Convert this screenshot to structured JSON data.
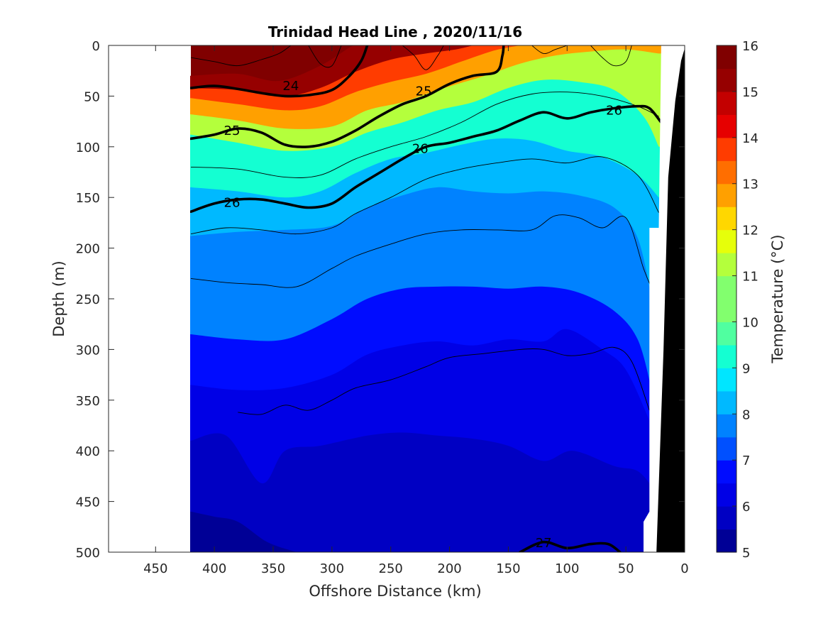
{
  "chart_data": {
    "type": "heatmap",
    "subtype": "filled-contour-section",
    "title": "Trinidad Head Line , 2020/11/16",
    "xlabel": "Offshore Distance (km)",
    "ylabel": "Depth (m)",
    "colorbar_label": "Temperature (°C)",
    "xlim": [
      490,
      0
    ],
    "ylim": [
      0,
      500
    ],
    "x_reversed": true,
    "y_reversed": true,
    "x_ticks": [
      "450",
      "400",
      "350",
      "300",
      "250",
      "200",
      "150",
      "100",
      "50",
      "0"
    ],
    "y_ticks": [
      "0",
      "50",
      "100",
      "150",
      "200",
      "250",
      "300",
      "350",
      "400",
      "450",
      "500"
    ],
    "colorbar_ticks": [
      "16",
      "15",
      "14",
      "13",
      "12",
      "11",
      "10",
      "9",
      "8",
      "7",
      "6",
      "5"
    ],
    "clim": [
      5,
      16
    ],
    "colormap": "jet",
    "contour_level_step": 0.5,
    "data_extent_km": [
      420,
      22
    ],
    "colorbar_colors": [
      "#000096",
      "#0000c3",
      "#0000e6",
      "#000cff",
      "#0050ff",
      "#0082ff",
      "#00b9ff",
      "#00e6ff",
      "#14ffd2",
      "#50ffa0",
      "#82ff6e",
      "#b4ff3c",
      "#e6ff0a",
      "#ffd700",
      "#ffa000",
      "#ff6e00",
      "#ff3c00",
      "#e60000",
      "#c30000",
      "#960000",
      "#800000"
    ],
    "isotherm_depths_m": [
      {
        "temp": 15.5,
        "points": [
          [
            420,
            30
          ],
          [
            380,
            28
          ],
          [
            345,
            35
          ],
          [
            310,
            20
          ],
          [
            285,
            2
          ],
          [
            280,
            0
          ]
        ]
      },
      {
        "temp": 14,
        "points": [
          [
            420,
            42
          ],
          [
            380,
            44
          ],
          [
            340,
            50
          ],
          [
            310,
            42
          ],
          [
            280,
            26
          ],
          [
            250,
            14
          ],
          [
            220,
            8
          ],
          [
            195,
            4
          ],
          [
            180,
            0
          ]
        ]
      },
      {
        "temp": 12.5,
        "points": [
          [
            420,
            52
          ],
          [
            380,
            58
          ],
          [
            340,
            64
          ],
          [
            310,
            60
          ],
          [
            280,
            46
          ],
          [
            250,
            36
          ],
          [
            220,
            28
          ],
          [
            190,
            16
          ],
          [
            165,
            6
          ],
          [
            150,
            2
          ],
          [
            140,
            0
          ]
        ]
      },
      {
        "temp": 11,
        "points": [
          [
            420,
            68
          ],
          [
            380,
            74
          ],
          [
            340,
            82
          ],
          [
            300,
            80
          ],
          [
            270,
            64
          ],
          [
            240,
            56
          ],
          [
            210,
            44
          ],
          [
            170,
            30
          ],
          [
            140,
            18
          ],
          [
            110,
            10
          ],
          [
            80,
            6
          ],
          [
            50,
            4
          ],
          [
            22,
            8
          ]
        ]
      },
      {
        "temp": 9.5,
        "points": [
          [
            420,
            88
          ],
          [
            380,
            96
          ],
          [
            340,
            104
          ],
          [
            300,
            100
          ],
          [
            270,
            86
          ],
          [
            240,
            76
          ],
          [
            210,
            64
          ],
          [
            180,
            56
          ],
          [
            150,
            42
          ],
          [
            120,
            34
          ],
          [
            90,
            36
          ],
          [
            60,
            44
          ],
          [
            35,
            70
          ],
          [
            22,
            100
          ]
        ]
      },
      {
        "temp": 8.5,
        "points": [
          [
            420,
            140
          ],
          [
            380,
            144
          ],
          [
            340,
            150
          ],
          [
            310,
            144
          ],
          [
            280,
            126
          ],
          [
            250,
            112
          ],
          [
            220,
            106
          ],
          [
            190,
            98
          ],
          [
            160,
            92
          ],
          [
            130,
            94
          ],
          [
            100,
            104
          ],
          [
            70,
            110
          ],
          [
            40,
            128
          ],
          [
            22,
            150
          ]
        ]
      },
      {
        "temp": 7.5,
        "points": [
          [
            420,
            188
          ],
          [
            380,
            184
          ],
          [
            340,
            182
          ],
          [
            300,
            178
          ],
          [
            270,
            160
          ],
          [
            240,
            148
          ],
          [
            210,
            140
          ],
          [
            180,
            144
          ],
          [
            150,
            146
          ],
          [
            120,
            144
          ],
          [
            90,
            148
          ],
          [
            60,
            160
          ],
          [
            40,
            190
          ],
          [
            28,
            250
          ]
        ]
      },
      {
        "temp": 6.5,
        "points": [
          [
            420,
            285
          ],
          [
            380,
            290
          ],
          [
            340,
            290
          ],
          [
            300,
            270
          ],
          [
            270,
            250
          ],
          [
            240,
            240
          ],
          [
            210,
            238
          ],
          [
            180,
            238
          ],
          [
            150,
            240
          ],
          [
            120,
            238
          ],
          [
            90,
            244
          ],
          [
            60,
            262
          ],
          [
            40,
            290
          ],
          [
            28,
            340
          ]
        ]
      },
      {
        "temp": 6,
        "points": [
          [
            420,
            335
          ],
          [
            380,
            340
          ],
          [
            340,
            338
          ],
          [
            300,
            325
          ],
          [
            270,
            305
          ],
          [
            240,
            296
          ],
          [
            210,
            292
          ],
          [
            180,
            296
          ],
          [
            150,
            290
          ],
          [
            120,
            292
          ],
          [
            100,
            280
          ],
          [
            70,
            300
          ],
          [
            50,
            320
          ],
          [
            30,
            370
          ]
        ]
      },
      {
        "temp": 5.5,
        "points": [
          [
            420,
            390
          ],
          [
            390,
            385
          ],
          [
            360,
            432
          ],
          [
            340,
            400
          ],
          [
            310,
            395
          ],
          [
            270,
            385
          ],
          [
            240,
            382
          ],
          [
            210,
            385
          ],
          [
            180,
            388
          ],
          [
            150,
            395
          ],
          [
            120,
            410
          ],
          [
            95,
            400
          ],
          [
            60,
            415
          ],
          [
            40,
            420
          ],
          [
            26,
            438
          ]
        ]
      },
      {
        "temp": 5.2,
        "points": [
          [
            420,
            460
          ],
          [
            400,
            465
          ],
          [
            380,
            470
          ],
          [
            355,
            490
          ],
          [
            330,
            500
          ]
        ]
      }
    ],
    "sigma_contours": [
      {
        "label": "24",
        "points": [
          [
            420,
            42
          ],
          [
            400,
            40
          ],
          [
            380,
            43
          ],
          [
            360,
            47
          ],
          [
            340,
            50
          ],
          [
            320,
            49
          ],
          [
            300,
            44
          ],
          [
            285,
            30
          ],
          [
            275,
            15
          ],
          [
            270,
            0
          ]
        ]
      },
      {
        "label": "25",
        "points": [
          [
            420,
            92
          ],
          [
            400,
            88
          ],
          [
            380,
            82
          ],
          [
            360,
            86
          ],
          [
            340,
            98
          ],
          [
            320,
            100
          ],
          [
            300,
            95
          ],
          [
            280,
            84
          ],
          [
            260,
            70
          ],
          [
            240,
            58
          ],
          [
            220,
            50
          ],
          [
            200,
            38
          ],
          [
            180,
            30
          ],
          [
            160,
            26
          ],
          [
            155,
            10
          ],
          [
            154,
            0
          ]
        ]
      },
      {
        "label": "26",
        "points": [
          [
            420,
            164
          ],
          [
            400,
            156
          ],
          [
            380,
            152
          ],
          [
            360,
            152
          ],
          [
            340,
            156
          ],
          [
            320,
            160
          ],
          [
            300,
            156
          ],
          [
            280,
            140
          ],
          [
            260,
            126
          ],
          [
            240,
            112
          ],
          [
            220,
            100
          ],
          [
            200,
            96
          ],
          [
            180,
            90
          ],
          [
            160,
            84
          ],
          [
            140,
            74
          ],
          [
            120,
            66
          ],
          [
            100,
            72
          ],
          [
            80,
            66
          ],
          [
            60,
            62
          ],
          [
            40,
            60
          ],
          [
            30,
            62
          ],
          [
            20,
            76
          ]
        ]
      },
      {
        "label": "27",
        "points": [
          [
            140,
            500
          ],
          [
            120,
            490
          ],
          [
            100,
            496
          ],
          [
            80,
            492
          ],
          [
            65,
            492
          ],
          [
            55,
            500
          ]
        ]
      }
    ],
    "thin_contours": [
      [
        [
          420,
          120
        ],
        [
          380,
          122
        ],
        [
          340,
          130
        ],
        [
          310,
          128
        ],
        [
          280,
          112
        ],
        [
          250,
          100
        ],
        [
          220,
          90
        ],
        [
          190,
          76
        ],
        [
          160,
          58
        ],
        [
          130,
          48
        ],
        [
          100,
          46
        ],
        [
          70,
          50
        ],
        [
          40,
          60
        ],
        [
          22,
          70
        ]
      ],
      [
        [
          420,
          186
        ],
        [
          390,
          180
        ],
        [
          360,
          182
        ],
        [
          330,
          186
        ],
        [
          300,
          180
        ],
        [
          280,
          166
        ],
        [
          250,
          150
        ],
        [
          220,
          132
        ],
        [
          190,
          122
        ],
        [
          160,
          116
        ],
        [
          130,
          112
        ],
        [
          100,
          116
        ],
        [
          70,
          110
        ],
        [
          40,
          128
        ],
        [
          22,
          165
        ]
      ],
      [
        [
          420,
          230
        ],
        [
          390,
          234
        ],
        [
          360,
          236
        ],
        [
          330,
          238
        ],
        [
          300,
          220
        ],
        [
          280,
          208
        ],
        [
          250,
          196
        ],
        [
          220,
          186
        ],
        [
          190,
          182
        ],
        [
          160,
          182
        ],
        [
          130,
          182
        ],
        [
          110,
          168
        ],
        [
          90,
          170
        ],
        [
          70,
          180
        ],
        [
          50,
          170
        ],
        [
          35,
          220
        ],
        [
          28,
          240
        ]
      ],
      [
        [
          380,
          362
        ],
        [
          360,
          364
        ],
        [
          340,
          355
        ],
        [
          320,
          360
        ],
        [
          300,
          350
        ],
        [
          280,
          338
        ],
        [
          250,
          330
        ],
        [
          220,
          317
        ],
        [
          200,
          308
        ],
        [
          170,
          304
        ],
        [
          140,
          300
        ],
        [
          120,
          300
        ],
        [
          100,
          306
        ],
        [
          80,
          304
        ],
        [
          60,
          298
        ],
        [
          45,
          312
        ],
        [
          30,
          360
        ]
      ],
      [
        [
          420,
          12
        ],
        [
          400,
          16
        ],
        [
          380,
          20
        ],
        [
          360,
          14
        ],
        [
          345,
          8
        ],
        [
          335,
          0
        ]
      ],
      [
        [
          320,
          0
        ],
        [
          310,
          18
        ],
        [
          300,
          20
        ],
        [
          292,
          0
        ]
      ],
      [
        [
          240,
          0
        ],
        [
          230,
          10
        ],
        [
          220,
          24
        ],
        [
          210,
          10
        ],
        [
          205,
          0
        ]
      ],
      [
        [
          130,
          0
        ],
        [
          120,
          8
        ],
        [
          110,
          4
        ],
        [
          100,
          0
        ]
      ],
      [
        [
          80,
          0
        ],
        [
          70,
          12
        ],
        [
          60,
          20
        ],
        [
          50,
          16
        ],
        [
          45,
          0
        ]
      ]
    ],
    "bathymetry_km_depth": [
      [
        35,
        500
      ],
      [
        35,
        470
      ],
      [
        30,
        460
      ],
      [
        28,
        190
      ],
      [
        22,
        185
      ],
      [
        12,
        60
      ],
      [
        0,
        0
      ],
      [
        0,
        500
      ]
    ],
    "shelf_mask": [
      [
        35,
        500
      ],
      [
        35,
        470
      ],
      [
        30,
        460
      ],
      [
        30,
        180
      ],
      [
        22,
        180
      ],
      [
        20,
        0
      ],
      [
        0,
        0
      ],
      [
        0,
        500
      ]
    ]
  }
}
